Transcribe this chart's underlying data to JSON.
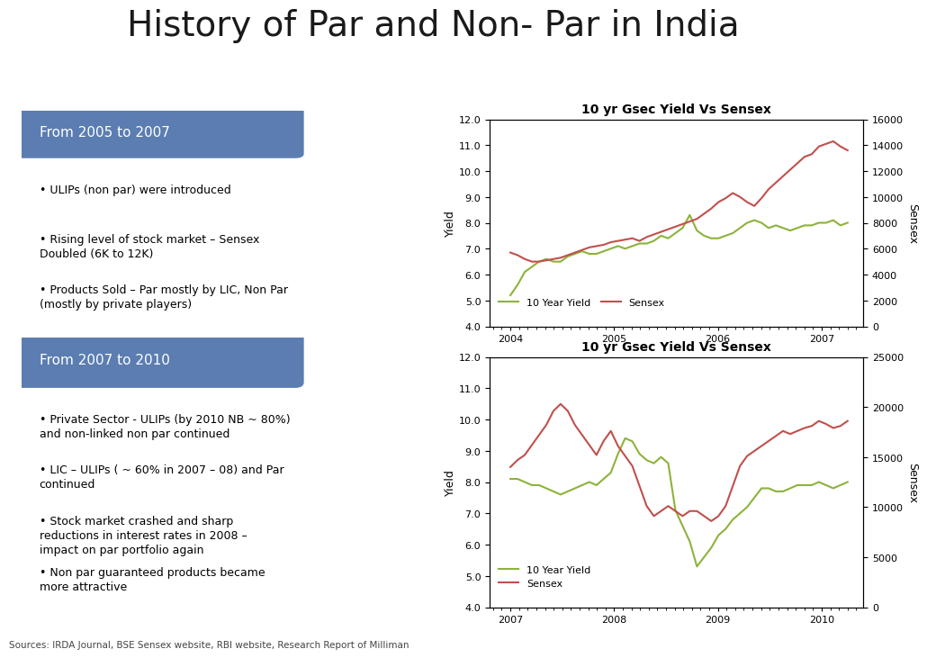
{
  "title": "History of Par and Non- Par in India",
  "title_fontsize": 28,
  "background_color": "#ffffff",
  "box1_header": "From 2005 to 2007",
  "box1_bullets": [
    "ULIPs (non par) were introduced",
    "Rising level of stock market – Sensex\nDoubled (6K to 12K)",
    "Products Sold – Par mostly by LIC, Non Par\n(mostly by private players)"
  ],
  "box2_header": "From 2007 to 2010",
  "box2_bullets": [
    "Private Sector - ULIPs (by 2010 NB ~ 80%)\nand non-linked non par continued",
    "LIC – ULIPs ( ~ 60% in 2007 – 08) and Par\ncontinued",
    "Stock market crashed and sharp\nreductions in interest rates in 2008 –\nimpact on par portfolio again",
    "Non par guaranteed products became\nmore attractive"
  ],
  "header_bg_color": "#5b7db1",
  "header_text_color": "#ffffff",
  "box_border_color": "#5b7db1",
  "box_bg_color": "#ffffff",
  "bullet_text_color": "#000000",
  "chart1_title": "10 yr Gsec Yield Vs Sensex",
  "chart1_xlabel_ticks": [
    "2004",
    "2005",
    "2006",
    "2007"
  ],
  "chart1_yield": [
    5.2,
    5.6,
    6.1,
    6.3,
    6.5,
    6.6,
    6.5,
    6.5,
    6.7,
    6.8,
    6.9,
    6.8,
    6.8,
    6.9,
    7.0,
    7.1,
    7.0,
    7.1,
    7.2,
    7.2,
    7.3,
    7.5,
    7.4,
    7.6,
    7.8,
    8.3,
    7.7,
    7.5,
    7.4,
    7.4,
    7.5,
    7.6,
    7.8,
    8.0,
    8.1,
    8.0,
    7.8,
    7.9,
    7.8,
    7.7,
    7.8,
    7.9,
    7.9,
    8.0,
    8.0,
    8.1,
    7.9,
    8.0
  ],
  "chart1_sensex": [
    5700,
    5500,
    5200,
    5000,
    5000,
    5100,
    5200,
    5300,
    5500,
    5700,
    5900,
    6100,
    6200,
    6300,
    6500,
    6600,
    6700,
    6800,
    6600,
    6900,
    7100,
    7300,
    7500,
    7700,
    7900,
    8100,
    8300,
    8700,
    9100,
    9600,
    9900,
    10300,
    10000,
    9600,
    9300,
    9900,
    10600,
    11100,
    11600,
    12100,
    12600,
    13100,
    13300,
    13900,
    14100,
    14300,
    13900,
    13600
  ],
  "chart1_ylim": [
    4.0,
    12.0
  ],
  "chart1_ylim2": [
    0,
    16000
  ],
  "chart1_yticks": [
    4.0,
    5.0,
    6.0,
    7.0,
    8.0,
    9.0,
    10.0,
    11.0,
    12.0
  ],
  "chart1_yticks2": [
    0,
    2000,
    4000,
    6000,
    8000,
    10000,
    12000,
    14000,
    16000
  ],
  "chart2_title": "10 yr Gsec Yield Vs Sensex",
  "chart2_xlabel_ticks": [
    "2007",
    "2008",
    "2009",
    "2010"
  ],
  "chart2_yield": [
    8.1,
    8.1,
    8.0,
    7.9,
    7.9,
    7.8,
    7.7,
    7.6,
    7.7,
    7.8,
    7.9,
    8.0,
    7.9,
    8.1,
    8.3,
    8.9,
    9.4,
    9.3,
    8.9,
    8.7,
    8.6,
    8.8,
    8.6,
    7.1,
    6.6,
    6.1,
    5.3,
    5.6,
    5.9,
    6.3,
    6.5,
    6.8,
    7.0,
    7.2,
    7.5,
    7.8,
    7.8,
    7.7,
    7.7,
    7.8,
    7.9,
    7.9,
    7.9,
    8.0,
    7.9,
    7.8,
    7.9,
    8.0
  ],
  "chart2_sensex": [
    14000,
    14700,
    15200,
    16200,
    17200,
    18200,
    19600,
    20300,
    19600,
    18200,
    17200,
    16200,
    15200,
    16600,
    17600,
    16100,
    15100,
    14100,
    12100,
    10100,
    9100,
    9600,
    10100,
    9600,
    9100,
    9600,
    9600,
    9100,
    8600,
    9100,
    10100,
    12100,
    14100,
    15100,
    15600,
    16100,
    16600,
    17100,
    17600,
    17300,
    17600,
    17900,
    18100,
    18600,
    18300,
    17900,
    18100,
    18600
  ],
  "chart2_ylim": [
    4.0,
    12.0
  ],
  "chart2_ylim2": [
    0,
    25000
  ],
  "chart2_yticks": [
    4.0,
    5.0,
    6.0,
    7.0,
    8.0,
    9.0,
    10.0,
    11.0,
    12.0
  ],
  "chart2_yticks2": [
    0,
    5000,
    10000,
    15000,
    20000,
    25000
  ],
  "yield_color": "#8db33a",
  "sensex_color": "#c0504d",
  "source_text": "Sources: IRDA Journal, BSE Sensex website, RBI website, Research Report of Milliman"
}
